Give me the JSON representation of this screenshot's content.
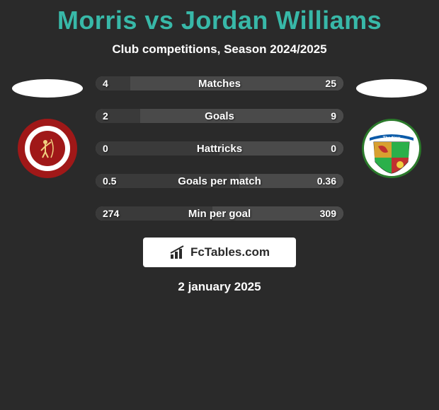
{
  "header": {
    "title": "Morris vs Jordan Williams",
    "subtitle": "Club competitions, Season 2024/2025"
  },
  "stats": {
    "rows": [
      {
        "label": "Matches",
        "left": "4",
        "right": "25",
        "left_pct": 14,
        "right_pct": 86
      },
      {
        "label": "Goals",
        "left": "2",
        "right": "9",
        "left_pct": 18,
        "right_pct": 82
      },
      {
        "label": "Hattricks",
        "left": "0",
        "right": "0",
        "left_pct": 50,
        "right_pct": 50
      },
      {
        "label": "Goals per match",
        "left": "0.5",
        "right": "0.36",
        "left_pct": 58,
        "right_pct": 42
      },
      {
        "label": "Min per goal",
        "left": "274",
        "right": "309",
        "left_pct": 47,
        "right_pct": 53
      }
    ],
    "bar_bg": "#7a7a7a",
    "bar_left_fill": "#3a3a3a",
    "bar_right_fill": "#4a4a4a"
  },
  "branding": {
    "label": "FcTables.com"
  },
  "date": "2 january 2025",
  "colors": {
    "page_bg": "#2a2a2a",
    "title": "#38b8a8",
    "text": "#ffffff",
    "ellipse": "#ffffff",
    "badge_left_ring": "#a01818",
    "badge_right_ring": "#2b7a2b"
  },
  "clubs": {
    "left_name": "cardiff-met-archer",
    "right_name": "the-new-saints"
  }
}
